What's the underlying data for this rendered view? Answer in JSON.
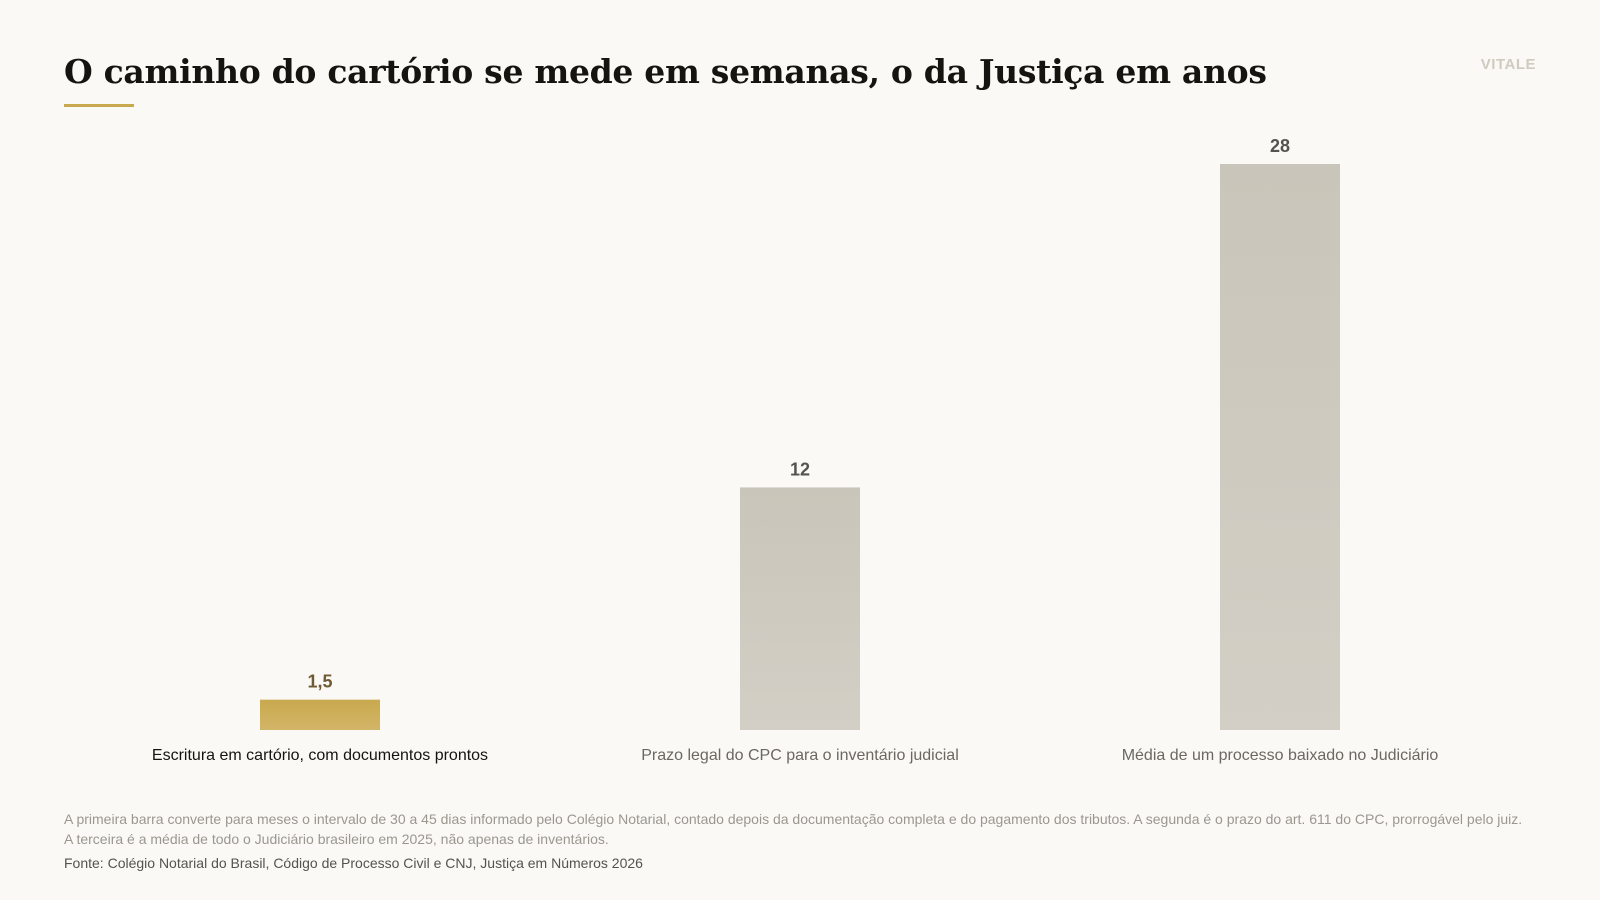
{
  "header": {
    "title": "O caminho do cartório se mede em semanas, o da Justiça em anos",
    "brand": "VITALE"
  },
  "chart_data": {
    "type": "bar",
    "title": "O caminho do cartório se mede em semanas, o da Justiça em anos",
    "xlabel": "",
    "ylabel": "",
    "categories": [
      "Escritura em cartório, com documentos prontos",
      "Prazo legal do CPC para o inventário judicial",
      "Média de um processo baixado no Judiciário"
    ],
    "values": [
      1.5,
      12,
      28
    ],
    "value_labels": [
      "1,5",
      "12",
      "28"
    ],
    "ylim": [
      0,
      28
    ],
    "grid": false,
    "highlight_index": 0,
    "colors": {
      "highlight": "#c9a94e",
      "default": "#cbc7bd",
      "highlight_label": "#6e5b33",
      "default_label": "#55534d"
    }
  },
  "footer": {
    "note": "A primeira barra converte para meses o intervalo de 30 a 45 dias informado pelo Colégio Notarial, contado depois da documentação completa e do pagamento dos tributos. A segunda é o prazo do art. 611 do CPC, prorrogável pelo juiz. A terceira é a média de todo o Judiciário brasileiro em 2025, não apenas de inventários.",
    "source": "Fonte: Colégio Notarial do Brasil, Código de Processo Civil e CNJ, Justiça em Números 2026"
  }
}
